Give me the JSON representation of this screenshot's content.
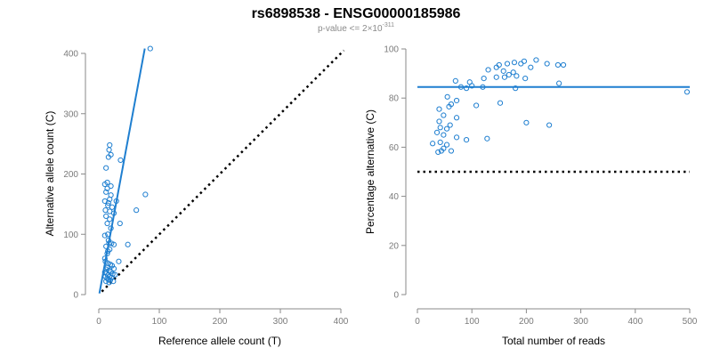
{
  "title": "rs6898538 - ENSG00000185986",
  "subtitle": {
    "prefix": "p-value <= 2",
    "times": "×",
    "base": "10",
    "exponent": "-311"
  },
  "colors": {
    "points": "#1f7fd0",
    "fit": "#1f7fd0",
    "reference": "#000000",
    "axis": "#8a8a8a"
  },
  "chart_data": [
    {
      "type": "scatter",
      "xlabel": "Reference allele count (T)",
      "ylabel": "Alternative allele count (C)",
      "xlim": [
        0,
        400
      ],
      "ylim": [
        0,
        400
      ],
      "x_ticks": [
        0,
        100,
        200,
        300,
        400
      ],
      "y_ticks": [
        0,
        100,
        200,
        300,
        400
      ],
      "grid": false,
      "points": [
        [
          85,
          408
        ],
        [
          18,
          248
        ],
        [
          17,
          240
        ],
        [
          20,
          232
        ],
        [
          16,
          228
        ],
        [
          36,
          223
        ],
        [
          12,
          210
        ],
        [
          14,
          186
        ],
        [
          10,
          183
        ],
        [
          20,
          180
        ],
        [
          14,
          176
        ],
        [
          12,
          170
        ],
        [
          20,
          165
        ],
        [
          77,
          166
        ],
        [
          18,
          158
        ],
        [
          10,
          155
        ],
        [
          29,
          155
        ],
        [
          16,
          152
        ],
        [
          15,
          148
        ],
        [
          22,
          145
        ],
        [
          62,
          140
        ],
        [
          11,
          140
        ],
        [
          18,
          138
        ],
        [
          25,
          135
        ],
        [
          12,
          130
        ],
        [
          18,
          125
        ],
        [
          14,
          118
        ],
        [
          35,
          118
        ],
        [
          20,
          110
        ],
        [
          15,
          100
        ],
        [
          10,
          98
        ],
        [
          16,
          90
        ],
        [
          21,
          85
        ],
        [
          17,
          85
        ],
        [
          48,
          83
        ],
        [
          25,
          83
        ],
        [
          12,
          80
        ],
        [
          18,
          75
        ],
        [
          15,
          72
        ],
        [
          14,
          68
        ],
        [
          10,
          60
        ],
        [
          11,
          55
        ],
        [
          33,
          55
        ],
        [
          15,
          52
        ],
        [
          19,
          50
        ],
        [
          22,
          48
        ],
        [
          14,
          45
        ],
        [
          25,
          43
        ],
        [
          12,
          42
        ],
        [
          17,
          40
        ],
        [
          20,
          38
        ],
        [
          10,
          37
        ],
        [
          13,
          35
        ],
        [
          23,
          34
        ],
        [
          27,
          33
        ],
        [
          15,
          32
        ],
        [
          18,
          30
        ],
        [
          11,
          30
        ],
        [
          21,
          28
        ],
        [
          14,
          27
        ],
        [
          16,
          25
        ],
        [
          19,
          24
        ],
        [
          24,
          22
        ],
        [
          12,
          22
        ],
        [
          17,
          20
        ]
      ],
      "fit_line": [
        [
          1,
          2
        ],
        [
          76,
          408
        ]
      ],
      "reference_line": [
        [
          5,
          5
        ],
        [
          405,
          405
        ]
      ]
    },
    {
      "type": "scatter",
      "xlabel": "Total number of reads",
      "ylabel": "Percentage alternative (C)",
      "xlim": [
        0,
        500
      ],
      "ylim": [
        0,
        100
      ],
      "x_ticks": [
        0,
        100,
        200,
        300,
        400,
        500
      ],
      "y_ticks": [
        0,
        20,
        40,
        60,
        80,
        100
      ],
      "grid": false,
      "points": [
        [
          495,
          82.5
        ],
        [
          218,
          95.5
        ],
        [
          196,
          95
        ],
        [
          190,
          94
        ],
        [
          238,
          94
        ],
        [
          258,
          93.5
        ],
        [
          268,
          93.5
        ],
        [
          178,
          94.5
        ],
        [
          165,
          94
        ],
        [
          150,
          93.5
        ],
        [
          145,
          92.5
        ],
        [
          208,
          92.5
        ],
        [
          130,
          91.5
        ],
        [
          158,
          91
        ],
        [
          176,
          90.5
        ],
        [
          168,
          89.5
        ],
        [
          182,
          89
        ],
        [
          145,
          88.5
        ],
        [
          160,
          88.5
        ],
        [
          122,
          88
        ],
        [
          198,
          88
        ],
        [
          70,
          87
        ],
        [
          96,
          86.5
        ],
        [
          260,
          86
        ],
        [
          100,
          85
        ],
        [
          80,
          84.5
        ],
        [
          120,
          84.5
        ],
        [
          180,
          84
        ],
        [
          90,
          84
        ],
        [
          55,
          80.5
        ],
        [
          72,
          79
        ],
        [
          152,
          78
        ],
        [
          62,
          77.5
        ],
        [
          58,
          76.5
        ],
        [
          108,
          77
        ],
        [
          40,
          75.5
        ],
        [
          48,
          73
        ],
        [
          72,
          72
        ],
        [
          40,
          70.5
        ],
        [
          60,
          69
        ],
        [
          200,
          70
        ],
        [
          42,
          68
        ],
        [
          54,
          67.5
        ],
        [
          36,
          66
        ],
        [
          242,
          69
        ],
        [
          48,
          65
        ],
        [
          72,
          64
        ],
        [
          90,
          63
        ],
        [
          128,
          63.5
        ],
        [
          42,
          62
        ],
        [
          28,
          61.5
        ],
        [
          54,
          61
        ],
        [
          48,
          59.5
        ],
        [
          44,
          58.5
        ],
        [
          38,
          58
        ],
        [
          62,
          58.5
        ]
      ],
      "fit_line": [
        [
          0,
          84.5
        ],
        [
          500,
          84.5
        ]
      ],
      "reference_line": [
        [
          0,
          50
        ],
        [
          500,
          50
        ]
      ]
    }
  ]
}
